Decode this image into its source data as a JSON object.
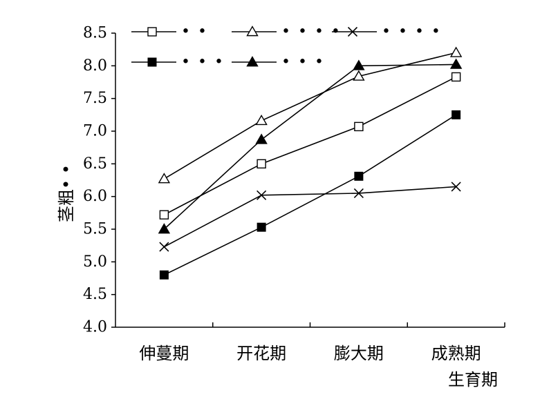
{
  "chart_data": {
    "type": "line",
    "title": "",
    "xlabel": "生育期",
    "ylabel": "茎粗• •",
    "categories": [
      "伸蔓期",
      "开花期",
      "膨大期",
      "成熟期"
    ],
    "ylim": [
      4.0,
      8.5
    ],
    "yticks": [
      "4.0",
      "4.5",
      "5.0",
      "5.5",
      "6.0",
      "6.5",
      "7.0",
      "7.5",
      "8.0",
      "8.5"
    ],
    "grid": false,
    "legend_position": "top",
    "series": [
      {
        "name": "• •",
        "marker": "open-square",
        "values": [
          5.72,
          6.5,
          7.07,
          7.83
        ]
      },
      {
        "name": "• • • •",
        "marker": "open-triangle",
        "values": [
          6.27,
          7.16,
          7.84,
          8.2
        ]
      },
      {
        "name": "• • • •",
        "marker": "cross",
        "values": [
          5.23,
          6.02,
          6.05,
          6.15
        ]
      },
      {
        "name": "• • •",
        "marker": "filled-square",
        "values": [
          4.8,
          5.53,
          6.31,
          7.25
        ]
      },
      {
        "name": "• • •",
        "marker": "filled-triangle",
        "values": [
          5.5,
          6.87,
          8.0,
          8.02
        ]
      }
    ]
  }
}
